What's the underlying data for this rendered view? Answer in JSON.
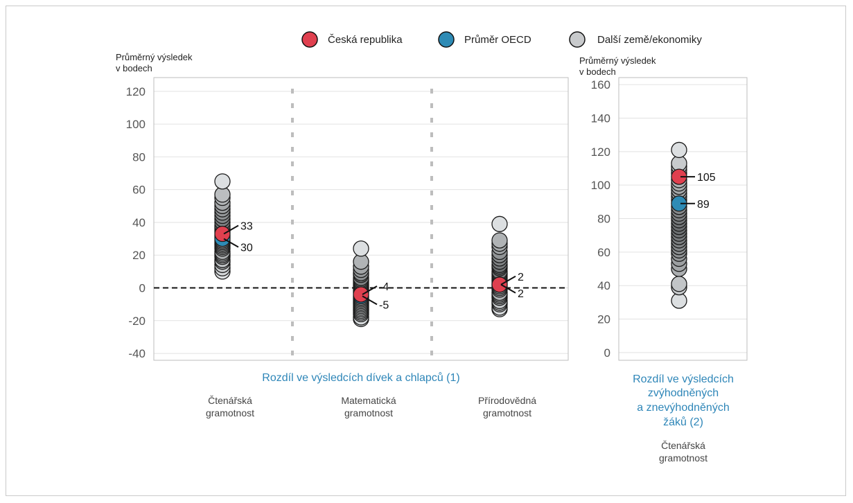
{
  "legend": {
    "items": [
      {
        "label": "Česká republika",
        "color": "#e0404f"
      },
      {
        "label": "Průměr OECD",
        "color": "#2e8bb5"
      },
      {
        "label": "Další země/ekonomiky",
        "color": "#c8cacc"
      }
    ]
  },
  "colors": {
    "czech": "#e0404f",
    "oecd": "#2e8bb5",
    "other": "#c8cacc",
    "accent_text": "#2e86b8"
  },
  "chart_data": [
    {
      "type": "scatter",
      "ylabel_lines": [
        "Průměrný výsledek",
        " v bodech"
      ],
      "ylim": [
        -40,
        120
      ],
      "yticks": [
        -40,
        -20,
        0,
        20,
        40,
        60,
        80,
        100,
        120
      ],
      "reference_line": 0,
      "section_label": "Rozdíl ve výsledcích dívek a chlapců (1)",
      "categories": [
        {
          "label_lines": [
            "Čtenářská",
            "gramotnost"
          ],
          "czech": 33,
          "oecd": 30,
          "czech_label": "33",
          "oecd_label": "30",
          "others": [
            10,
            12,
            14,
            16,
            17,
            19,
            20,
            21,
            22,
            24,
            25,
            26,
            27,
            28,
            29,
            31,
            32,
            34,
            35,
            36,
            37,
            38,
            40,
            42,
            44,
            46,
            48,
            50,
            52,
            55,
            57,
            65
          ]
        },
        {
          "label_lines": [
            "Matematická",
            "gramotnost"
          ],
          "czech": -4,
          "oecd": -5,
          "czech_label": "-4",
          "oecd_label": "-5",
          "others": [
            -19,
            -18,
            -16,
            -15,
            -14,
            -13,
            -12,
            -11,
            -10,
            -9,
            -8,
            -7,
            -6,
            -3,
            -2,
            -1,
            0,
            1,
            2,
            3,
            4,
            5,
            6,
            8,
            9,
            11,
            13,
            16,
            24
          ]
        },
        {
          "label_lines": [
            "Přírodovědná",
            "gramotnost"
          ],
          "czech": 2,
          "oecd": 2,
          "czech_label": "2",
          "oecd_label": "2",
          "others": [
            -13,
            -12,
            -10,
            -9,
            -8,
            -6,
            -5,
            -4,
            -3,
            -1,
            0,
            1,
            3,
            4,
            5,
            6,
            7,
            8,
            9,
            10,
            12,
            13,
            14,
            16,
            18,
            20,
            22,
            25,
            27,
            29,
            39
          ]
        }
      ]
    },
    {
      "type": "scatter",
      "ylabel_lines": [
        "Průměrný výsledek",
        "v bodech"
      ],
      "ylim": [
        0,
        160
      ],
      "yticks": [
        0,
        20,
        40,
        60,
        80,
        100,
        120,
        140,
        160
      ],
      "section_label_lines": [
        "Rozdíl ve výsledcích",
        "zvýhodněných",
        "a znevýhodněných",
        "žáků (2)"
      ],
      "categories": [
        {
          "label_lines": [
            "Čtenářská",
            "gramotnost"
          ],
          "czech": 105,
          "oecd": 89,
          "czech_label": "105",
          "oecd_label": "89",
          "others": [
            31,
            39,
            41,
            50,
            53,
            56,
            59,
            61,
            63,
            65,
            67,
            69,
            71,
            73,
            75,
            77,
            79,
            81,
            83,
            85,
            87,
            91,
            93,
            95,
            97,
            99,
            101,
            103,
            107,
            109,
            111,
            113,
            121
          ]
        }
      ]
    }
  ]
}
